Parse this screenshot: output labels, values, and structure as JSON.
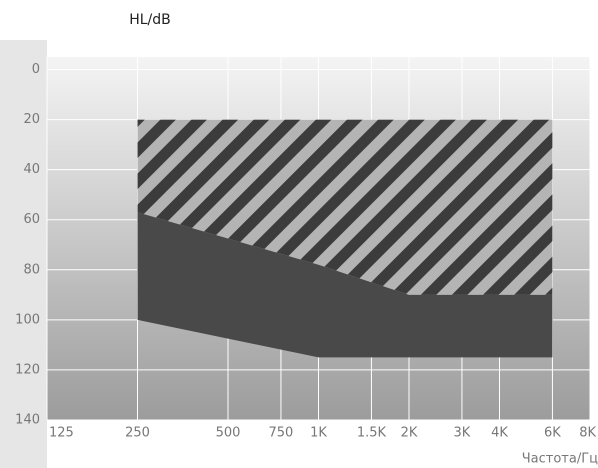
{
  "chart_data": {
    "type": "range-area",
    "y_label": "HL/dB",
    "x_label": "Частота/Гц",
    "x_scale": "log",
    "y_inverted": true,
    "grid": true,
    "xlim": [
      125,
      8000
    ],
    "ylim": [
      -5,
      140
    ],
    "xticks": [
      125,
      250,
      500,
      750,
      {
        "value": 1000,
        "label": "1K"
      },
      {
        "value": 1500,
        "label": "1.5K"
      },
      {
        "value": 2000,
        "label": "2K"
      },
      {
        "value": 3000,
        "label": "3K"
      },
      {
        "value": 4000,
        "label": "4K"
      },
      {
        "value": 6000,
        "label": "6K"
      },
      {
        "value": 8000,
        "label": "8K"
      }
    ],
    "yticks": [
      0,
      20,
      40,
      60,
      80,
      100,
      120,
      140
    ],
    "x": [
      250,
      1000,
      2000,
      6000
    ],
    "bands": [
      {
        "pattern": "hatch",
        "color": "#3c3c3c",
        "background": "#b4b4b4",
        "top": [
          20,
          20,
          20,
          20
        ],
        "bottom": [
          57,
          78,
          90,
          90
        ]
      },
      {
        "pattern": "solid",
        "color": "#494949",
        "top": [
          57,
          78,
          90,
          90
        ],
        "bottom": [
          100,
          115,
          115,
          115
        ]
      }
    ]
  }
}
